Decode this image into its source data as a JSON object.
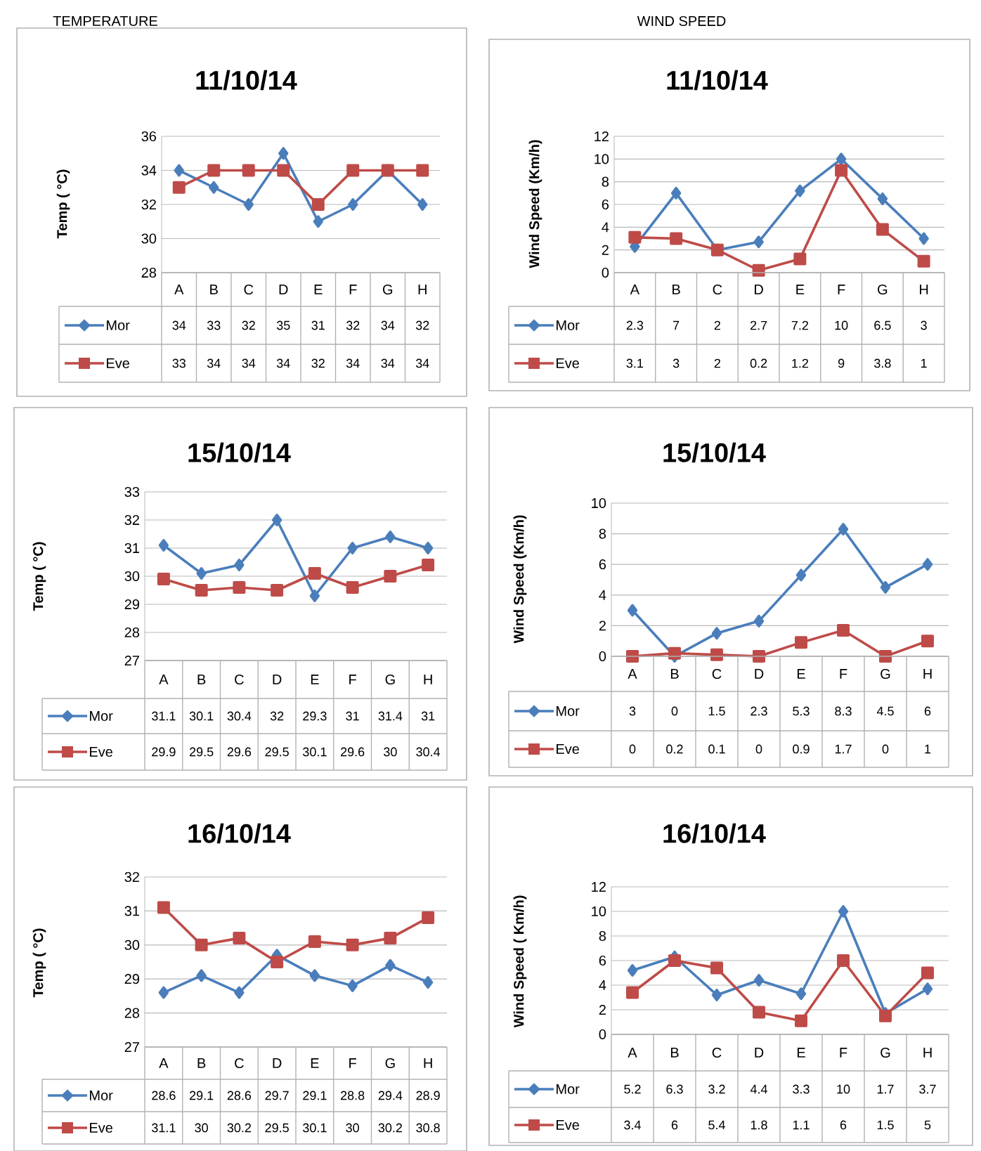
{
  "chart_data": [
    {
      "type": "line",
      "title": "11/10/14",
      "ylabel": "Temp ( °C)",
      "annotations": [
        "TEMPERATURE"
      ],
      "categories": [
        "A",
        "B",
        "C",
        "D",
        "E",
        "F",
        "G",
        "H"
      ],
      "ylim": [
        28,
        36
      ],
      "yticks": [
        28,
        30,
        32,
        34,
        36
      ],
      "grid": "y",
      "legend": "bottom",
      "data_labels": true,
      "series": [
        {
          "name": "Mor",
          "color": "#4a7ebb",
          "marker": "diamond",
          "values": [
            34,
            33,
            32,
            35,
            31,
            32,
            34,
            32
          ]
        },
        {
          "name": "Eve",
          "color": "#be4b48",
          "marker": "square",
          "values": [
            33,
            34,
            34,
            34,
            32,
            34,
            34,
            34
          ]
        }
      ]
    },
    {
      "type": "line",
      "title": "11/10/14",
      "ylabel": "Wind Speed (Km/h)",
      "annotations": [
        "WIND SPEED"
      ],
      "categories": [
        "A",
        "B",
        "C",
        "D",
        "E",
        "F",
        "G",
        "H"
      ],
      "ylim": [
        0,
        12
      ],
      "yticks": [
        0,
        2,
        4,
        6,
        8,
        10,
        12
      ],
      "grid": "y",
      "legend": "bottom",
      "data_labels": true,
      "series": [
        {
          "name": "Mor",
          "color": "#4a7ebb",
          "marker": "diamond",
          "values": [
            2.3,
            7,
            2,
            2.7,
            7.2,
            10,
            6.5,
            3
          ]
        },
        {
          "name": "Eve",
          "color": "#be4b48",
          "marker": "square",
          "values": [
            3.1,
            3,
            2,
            0.2,
            1.2,
            9,
            3.8,
            1
          ]
        }
      ]
    },
    {
      "type": "line",
      "title": "15/10/14",
      "ylabel": "Temp ( °C)",
      "categories": [
        "A",
        "B",
        "C",
        "D",
        "E",
        "F",
        "G",
        "H"
      ],
      "ylim": [
        27,
        33
      ],
      "yticks": [
        27,
        28,
        29,
        30,
        31,
        32,
        33
      ],
      "grid": "y",
      "legend": "bottom",
      "data_labels": true,
      "series": [
        {
          "name": "Mor",
          "color": "#4a7ebb",
          "marker": "diamond",
          "values": [
            31.1,
            30.1,
            30.4,
            32,
            29.3,
            31,
            31.4,
            31
          ]
        },
        {
          "name": "Eve",
          "color": "#be4b48",
          "marker": "square",
          "values": [
            29.9,
            29.5,
            29.6,
            29.5,
            30.1,
            29.6,
            30,
            30.4
          ]
        }
      ]
    },
    {
      "type": "line",
      "title": "15/10/14",
      "ylabel": "Wind Speed (Km/h)",
      "categories": [
        "A",
        "B",
        "C",
        "D",
        "E",
        "F",
        "G",
        "H"
      ],
      "ylim": [
        0,
        10
      ],
      "yticks": [
        0,
        2,
        4,
        6,
        8,
        10
      ],
      "grid": "y",
      "legend": "bottom",
      "data_labels": true,
      "series": [
        {
          "name": "Mor",
          "color": "#4a7ebb",
          "marker": "diamond",
          "values": [
            3,
            0,
            1.5,
            2.3,
            5.3,
            8.3,
            4.5,
            6
          ]
        },
        {
          "name": "Eve",
          "color": "#be4b48",
          "marker": "square",
          "values": [
            0,
            0.2,
            0.1,
            0,
            0.9,
            1.7,
            0,
            1
          ]
        }
      ]
    },
    {
      "type": "line",
      "title": "16/10/14",
      "ylabel": "Temp ( °C)",
      "categories": [
        "A",
        "B",
        "C",
        "D",
        "E",
        "F",
        "G",
        "H"
      ],
      "ylim": [
        27,
        32
      ],
      "yticks": [
        27,
        28,
        29,
        30,
        31,
        32
      ],
      "grid": "y",
      "legend": "bottom",
      "data_labels": true,
      "series": [
        {
          "name": "Mor",
          "color": "#4a7ebb",
          "marker": "diamond",
          "values": [
            28.6,
            29.1,
            28.6,
            29.7,
            29.1,
            28.8,
            29.4,
            28.9
          ]
        },
        {
          "name": "Eve",
          "color": "#be4b48",
          "marker": "square",
          "values": [
            31.1,
            30,
            30.2,
            29.5,
            30.1,
            30,
            30.2,
            30.8
          ]
        }
      ]
    },
    {
      "type": "line",
      "title": "16/10/14",
      "ylabel": "Wind Speed ( Km/h)",
      "categories": [
        "A",
        "B",
        "C",
        "D",
        "E",
        "F",
        "G",
        "H"
      ],
      "ylim": [
        0,
        12
      ],
      "yticks": [
        0,
        2,
        4,
        6,
        8,
        10,
        12
      ],
      "grid": "y",
      "legend": "bottom",
      "data_labels": true,
      "series": [
        {
          "name": "Mor",
          "color": "#4a7ebb",
          "marker": "diamond",
          "values": [
            5.2,
            6.3,
            3.2,
            4.4,
            3.3,
            10,
            1.7,
            3.7
          ]
        },
        {
          "name": "Eve",
          "color": "#be4b48",
          "marker": "square",
          "values": [
            3.4,
            6,
            5.4,
            1.8,
            1.1,
            6,
            1.5,
            5
          ]
        }
      ]
    }
  ]
}
